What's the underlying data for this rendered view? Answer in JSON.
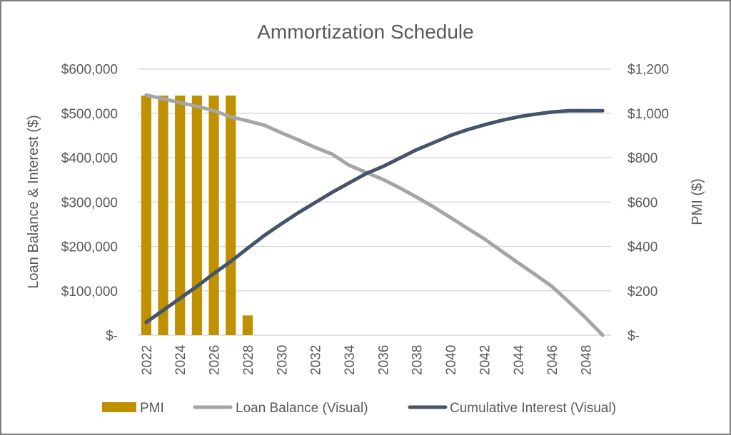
{
  "chart_data": {
    "type": "bar+line",
    "title": "Ammortization Schedule",
    "ylabel": "Loan Balance & Interest ($)",
    "y2label": "PMI ($)",
    "ylim": [
      0,
      600000
    ],
    "y2lim": [
      0,
      1200
    ],
    "yticks": [
      "$-",
      "$100,000",
      "$200,000",
      "$300,000",
      "$400,000",
      "$500,000",
      "$600,000"
    ],
    "y2ticks": [
      "$-",
      "$200",
      "$400",
      "$600",
      "$800",
      "$1,000",
      "$1,200"
    ],
    "grid": true,
    "legend_position": "bottom",
    "categories": [
      2022,
      2023,
      2024,
      2025,
      2026,
      2027,
      2028,
      2029,
      2030,
      2031,
      2032,
      2033,
      2034,
      2035,
      2036,
      2037,
      2038,
      2039,
      2040,
      2041,
      2042,
      2043,
      2044,
      2045,
      2046,
      2047,
      2048,
      2049
    ],
    "xtick_labels": [
      "2022",
      "2024",
      "2026",
      "2028",
      "2030",
      "2032",
      "2034",
      "2036",
      "2038",
      "2040",
      "2042",
      "2044",
      "2046",
      "2048"
    ],
    "series": [
      {
        "name": "PMI",
        "kind": "bar",
        "axis": "right",
        "color": "#BF9000",
        "values": [
          1080,
          1080,
          1080,
          1080,
          1080,
          1080,
          89,
          0,
          0,
          0,
          0,
          0,
          0,
          0,
          0,
          0,
          0,
          0,
          0,
          0,
          0,
          0,
          0,
          0,
          0,
          0,
          0,
          0
        ]
      },
      {
        "name": "Loan Balance (Visual)",
        "kind": "line",
        "axis": "left",
        "color": "#A5A5A5",
        "values": [
          541000,
          533000,
          524000,
          516000,
          506000,
          492000,
          483000,
          473000,
          456000,
          440000,
          423000,
          408000,
          383000,
          367000,
          351000,
          332000,
          311000,
          289000,
          265000,
          241000,
          217000,
          190000,
          163000,
          137000,
          110000,
          75000,
          39000,
          0
        ]
      },
      {
        "name": "Cumulative Interest (Visual)",
        "kind": "line",
        "axis": "left",
        "color": "#44546A",
        "values": [
          29000,
          56000,
          83000,
          110000,
          139000,
          166000,
          196000,
          225000,
          251000,
          276000,
          299000,
          322000,
          343000,
          364000,
          380000,
          399000,
          418000,
          434000,
          450000,
          463000,
          474000,
          484000,
          492000,
          498000,
          503000,
          506000,
          506000,
          506000
        ]
      }
    ]
  }
}
